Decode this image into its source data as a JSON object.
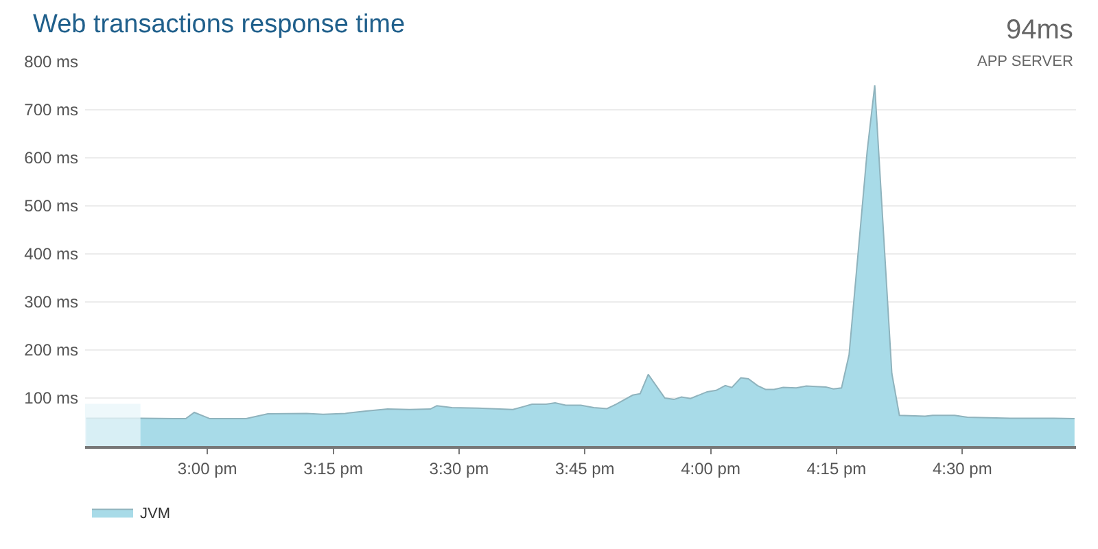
{
  "chart_data": {
    "type": "area",
    "title": "Web transactions response time",
    "annotations": [
      "94ms",
      "APP SERVER"
    ],
    "x": [
      14.759,
      14.867,
      14.957,
      14.974,
      15.005,
      15.077,
      15.12,
      15.197,
      15.23,
      15.274,
      15.315,
      15.358,
      15.402,
      15.443,
      15.456,
      15.486,
      15.538,
      15.607,
      15.645,
      15.673,
      15.691,
      15.712,
      15.742,
      15.768,
      15.794,
      15.812,
      15.845,
      15.86,
      15.876,
      15.909,
      15.927,
      15.942,
      15.96,
      15.993,
      16.011,
      16.029,
      16.042,
      16.06,
      16.075,
      16.093,
      16.109,
      16.126,
      16.144,
      16.17,
      16.19,
      16.229,
      16.244,
      16.26,
      16.275,
      16.311,
      16.326,
      16.36,
      16.375,
      16.426,
      16.441,
      16.485,
      16.51,
      16.595,
      16.682,
      16.723
    ],
    "series": [
      {
        "name": "JVM",
        "color": "#a8dbe8",
        "values": [
          58,
          58,
          57,
          70,
          57,
          57,
          67,
          68,
          66,
          68,
          73,
          77,
          76,
          77,
          84,
          80,
          79,
          76,
          87,
          87,
          90,
          85,
          85,
          80,
          78,
          87,
          106,
          109,
          149,
          100,
          97,
          102,
          99,
          113,
          116,
          126,
          122,
          142,
          140,
          126,
          118,
          118,
          122,
          121,
          125,
          123,
          119,
          121,
          190,
          614,
          751,
          151,
          64,
          62,
          64,
          64,
          60,
          58,
          58,
          57
        ]
      }
    ],
    "bands": [
      {
        "axis": "x",
        "from": 14.757,
        "to": 14.867,
        "color": "#e8f5f9"
      }
    ],
    "xlim": [
      14.757,
      16.726
    ],
    "xticks": [
      {
        "value": 15,
        "label": "3:00 pm"
      },
      {
        "value": 15.25,
        "label": "3:15 pm"
      },
      {
        "value": 15.5,
        "label": "3:30 pm"
      },
      {
        "value": 15.75,
        "label": "3:45 pm"
      },
      {
        "value": 16,
        "label": "4:00 pm"
      },
      {
        "value": 16.25,
        "label": "4:15 pm"
      },
      {
        "value": 16.5,
        "label": "4:30 pm"
      }
    ],
    "ylim": [
      0,
      800
    ],
    "yticks": [
      {
        "value": 100,
        "label": "100 ms"
      },
      {
        "value": 200,
        "label": "200 ms"
      },
      {
        "value": 300,
        "label": "300 ms"
      },
      {
        "value": 400,
        "label": "400 ms"
      },
      {
        "value": 500,
        "label": "500 ms"
      },
      {
        "value": 600,
        "label": "600 ms"
      },
      {
        "value": 700,
        "label": "700 ms"
      },
      {
        "value": 800,
        "label": "800 ms"
      }
    ],
    "grid": "y",
    "legend": "bottom left"
  }
}
